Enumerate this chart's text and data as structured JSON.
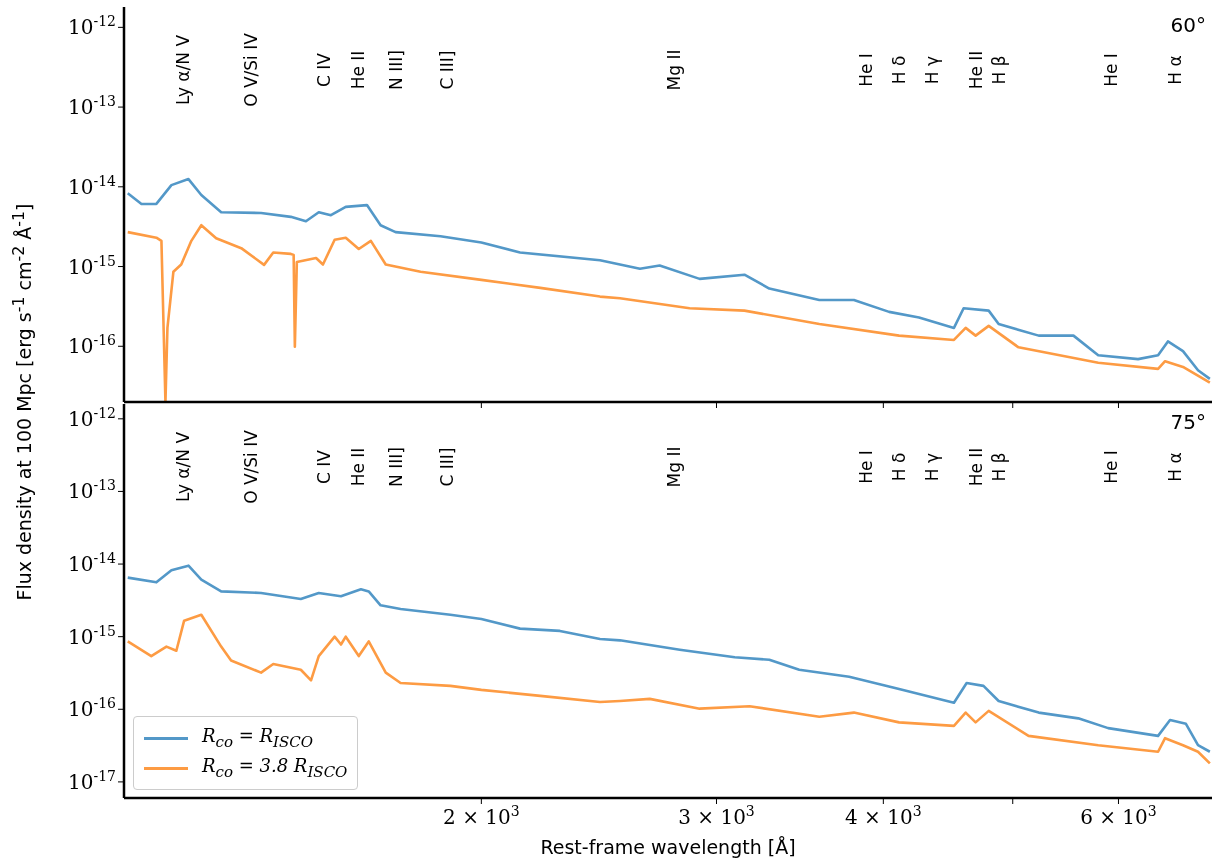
{
  "chart_data": [
    {
      "type": "line",
      "ylabel": "Flux density at 100 Mpc [erg s$^{-1}$ cm$^{-2}$ Å$^{-1}$]",
      "log": "xy",
      "tick_labels": "y",
      "xlim": [
        1080,
        7050
      ],
      "ylim": [
        2e-17,
        1.8e-12
      ],
      "xticks": [
        {
          "value": 2000,
          "label": null
        },
        {
          "value": 3000,
          "label": null
        },
        {
          "value": 4000,
          "label": null
        },
        {
          "value": 5000,
          "label": null
        },
        {
          "value": 6000,
          "label": null
        }
      ],
      "yticks": [
        {
          "value": 1e-16,
          "label": "10$^{-16}$"
        },
        {
          "value": 1e-15,
          "label": "10$^{-15}$"
        },
        {
          "value": 1e-14,
          "label": "10$^{-14}$"
        },
        {
          "value": 1e-13,
          "label": "10$^{-13}$"
        },
        {
          "value": 1e-12,
          "label": "10$^{-12}$"
        }
      ],
      "series": [
        {
          "color": "#5398c8",
          "x": [
            1087,
            1113,
            1142,
            1172,
            1207,
            1234,
            1277,
            1368,
            1440,
            1478,
            1511,
            1543,
            1583,
            1642,
            1681,
            1725,
            1864,
            2000,
            2138,
            2454,
            2629,
            2720,
            2914,
            3148,
            3286,
            3582,
            3802,
            4040,
            4254,
            4518,
            4594,
            4797,
            4880,
            5229,
            5552,
            5794,
            6206,
            6424,
            6534,
            6706,
            6882,
            7024
          ],
          "values": [
            8.3e-15,
            6.1e-15,
            6.1e-15,
            1.05e-14,
            1.25e-14,
            7.9e-15,
            4.8e-15,
            4.7e-15,
            4.2e-15,
            3.7e-15,
            4.8e-15,
            4.4e-15,
            5.6e-15,
            5.9e-15,
            3.3e-15,
            2.7e-15,
            2.4e-15,
            2e-15,
            1.5e-15,
            1.2e-15,
            9.4e-16,
            1.03e-15,
            7e-16,
            7.9e-16,
            5.3e-16,
            3.8e-16,
            3.8e-16,
            2.7e-16,
            2.3e-16,
            1.7e-16,
            3e-16,
            2.8e-16,
            1.9e-16,
            1.36e-16,
            1.36e-16,
            7.7e-17,
            6.9e-17,
            7.7e-17,
            1.15e-16,
            8.7e-17,
            5e-17,
            3.9e-17
          ]
        },
        {
          "color": "#fd9b43",
          "x": [
            1087,
            1142,
            1152,
            1160,
            1164,
            1176,
            1192,
            1213,
            1234,
            1266,
            1322,
            1375,
            1397,
            1440,
            1447,
            1450,
            1455,
            1504,
            1522,
            1553,
            1583,
            1619,
            1653,
            1696,
            1801,
            2000,
            2214,
            2454,
            2540,
            2864,
            3148,
            3582,
            4110,
            4518,
            4610,
            4690,
            4797,
            5050,
            5794,
            6424,
            6502,
            6706,
            7024
          ],
          "values": [
            2.7e-15,
            2.3e-15,
            2.1e-15,
            2e-17,
            1.7e-16,
            8.6e-16,
            1.06e-15,
            2.1e-15,
            3.3e-15,
            2.26e-15,
            1.7e-15,
            1.05e-15,
            1.5e-15,
            1.44e-15,
            1.4e-15,
            9.9e-17,
            1.14e-15,
            1.28e-15,
            1.06e-15,
            2.17e-15,
            2.3e-15,
            1.66e-15,
            2.1e-15,
            1.06e-15,
            8.6e-16,
            6.8e-16,
            5.4e-16,
            4.2e-16,
            4e-16,
            3e-16,
            2.8e-16,
            1.9e-16,
            1.36e-16,
            1.2e-16,
            1.7e-16,
            1.36e-16,
            1.8e-16,
            9.7e-17,
            6.2e-17,
            5.2e-17,
            6.5e-17,
            5.5e-17,
            3.5e-17
          ]
        }
      ],
      "annotations": [
        "60°",
        "Ly α/N V",
        "O V/Si IV",
        "C IV",
        "He II",
        "N III]",
        "C III]",
        "Mg II",
        "He I",
        "H δ",
        "H γ",
        "He II",
        "H β",
        "He I",
        "H α"
      ]
    },
    {
      "type": "line",
      "xlabel": "Rest-frame wavelength [Å]",
      "log": "xy",
      "legend": "bottom left",
      "xlim": [
        1080,
        7050
      ],
      "ylim": [
        6e-18,
        1.6e-12
      ],
      "xticks": [
        {
          "value": 2000,
          "label": "2 × 10$^{3}$"
        },
        {
          "value": 3000,
          "label": "3 × 10$^{3}$"
        },
        {
          "value": 4000,
          "label": "4 × 10$^{3}$"
        },
        {
          "value": 5000,
          "label": null
        },
        {
          "value": 6000,
          "label": "6 × 10$^{3}$"
        }
      ],
      "yticks": [
        {
          "value": 1e-17,
          "label": "10$^{-17}$"
        },
        {
          "value": 1e-16,
          "label": "10$^{-16}$"
        },
        {
          "value": 1e-15,
          "label": "10$^{-15}$"
        },
        {
          "value": 1e-14,
          "label": "10$^{-14}$"
        },
        {
          "value": 1e-13,
          "label": "10$^{-13}$"
        },
        {
          "value": 1e-12,
          "label": "10$^{-12}$"
        }
      ],
      "series": [
        {
          "name": "R$_{co}$ = R$_{ISCO}$",
          "color": "#5398c8",
          "x": [
            1087,
            1142,
            1172,
            1207,
            1234,
            1277,
            1368,
            1465,
            1511,
            1570,
            1625,
            1647,
            1681,
            1740,
            1896,
            2000,
            2138,
            2290,
            2454,
            2540,
            2816,
            3096,
            3286,
            3460,
            3771,
            4110,
            4518,
            4618,
            4754,
            4880,
            5229,
            5598,
            5894,
            6424,
            6558,
            6740,
            6882,
            7024
          ],
          "values": [
            6.5e-15,
            5.6e-15,
            8.2e-15,
            9.5e-15,
            6.1e-15,
            4.2e-15,
            4e-15,
            3.3e-15,
            4e-15,
            3.6e-15,
            4.5e-15,
            4.2e-15,
            2.7e-15,
            2.4e-15,
            2e-15,
            1.75e-15,
            1.29e-15,
            1.2e-15,
            9.3e-16,
            8.9e-16,
            6.6e-16,
            5.2e-16,
            4.8e-16,
            3.5e-16,
            2.8e-16,
            1.9e-16,
            1.23e-16,
            2.3e-16,
            2.1e-16,
            1.3e-16,
            9e-17,
            7.5e-17,
            5.5e-17,
            4.3e-17,
            7.1e-17,
            6.3e-17,
            3.2e-17,
            2.6e-17
          ]
        },
        {
          "name": "R$_{co}$ = 3.8 R$_{ISCO}$",
          "color": "#fd9b43",
          "x": [
            1087,
            1132,
            1162,
            1182,
            1198,
            1234,
            1277,
            1299,
            1368,
            1397,
            1465,
            1491,
            1511,
            1553,
            1570,
            1583,
            1619,
            1647,
            1696,
            1740,
            1896,
            2000,
            2214,
            2454,
            2540,
            2674,
            2914,
            3176,
            3582,
            3802,
            4110,
            4518,
            4610,
            4690,
            4797,
            5138,
            5794,
            6424,
            6502,
            6706,
            6882,
            7024
          ],
          "values": [
            8.6e-16,
            5.4e-16,
            7.3e-16,
            6.4e-16,
            1.66e-15,
            2e-15,
            7.3e-16,
            4.7e-16,
            3.2e-16,
            4.2e-16,
            3.5e-16,
            2.5e-16,
            5.4e-16,
            1e-15,
            7.8e-16,
            1e-15,
            5.4e-16,
            8.6e-16,
            3.2e-16,
            2.3e-16,
            2.1e-16,
            1.85e-16,
            1.53e-16,
            1.26e-16,
            1.3e-16,
            1.39e-16,
            1.02e-16,
            1.1e-16,
            7.9e-17,
            9e-17,
            6.6e-17,
            5.9e-17,
            9e-17,
            6.6e-17,
            9.5e-17,
            4.3e-17,
            3.2e-17,
            2.6e-17,
            4e-17,
            3.2e-17,
            2.6e-17,
            1.8e-17
          ]
        }
      ],
      "annotations": [
        "75°",
        "Ly α/N V",
        "O V/Si IV",
        "C IV",
        "He II",
        "N III]",
        "C III]",
        "Mg II",
        "He I",
        "H δ",
        "H γ",
        "He II",
        "H β",
        "He I",
        "H α"
      ]
    }
  ]
}
